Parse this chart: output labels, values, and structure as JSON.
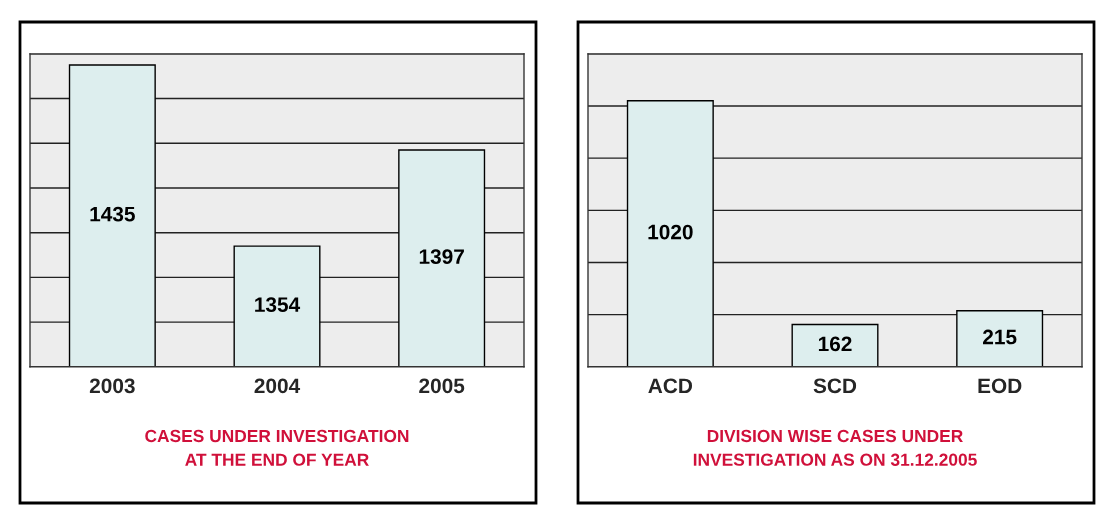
{
  "chart_data": [
    {
      "type": "bar",
      "title": "CASES UNDER INVESTIGATION\nAT THE END OF YEAR",
      "categories": [
        "2003",
        "2004",
        "2005"
      ],
      "values": [
        1435,
        1354,
        1397
      ],
      "color": "#ddeeee",
      "ylim": [
        1300,
        1440
      ],
      "yticks": [
        {
          "value": 1300,
          "label": null
        },
        {
          "value": 1320,
          "label": null
        },
        {
          "value": 1340,
          "label": null
        },
        {
          "value": 1360,
          "label": null
        },
        {
          "value": 1380,
          "label": null
        },
        {
          "value": 1400,
          "label": null
        },
        {
          "value": 1420,
          "label": null
        },
        {
          "value": 1440,
          "label": null
        }
      ],
      "grid": "y",
      "tick_labels": "x",
      "data_labels": true
    },
    {
      "type": "bar",
      "title": "DIVISION WISE CASES UNDER\nINVESTIGATION AS ON 31.12.2005",
      "categories": [
        "ACD",
        "SCD",
        "EOD"
      ],
      "values": [
        1020,
        162,
        215
      ],
      "color": "#ddeeee",
      "ylim": [
        0,
        1200
      ],
      "yticks": [
        {
          "value": 0,
          "label": null
        },
        {
          "value": 200,
          "label": null
        },
        {
          "value": 400,
          "label": null
        },
        {
          "value": 600,
          "label": null
        },
        {
          "value": 800,
          "label": null
        },
        {
          "value": 1000,
          "label": null
        },
        {
          "value": 1200,
          "label": null
        }
      ],
      "grid": "y",
      "tick_labels": "x",
      "data_labels": true
    }
  ]
}
